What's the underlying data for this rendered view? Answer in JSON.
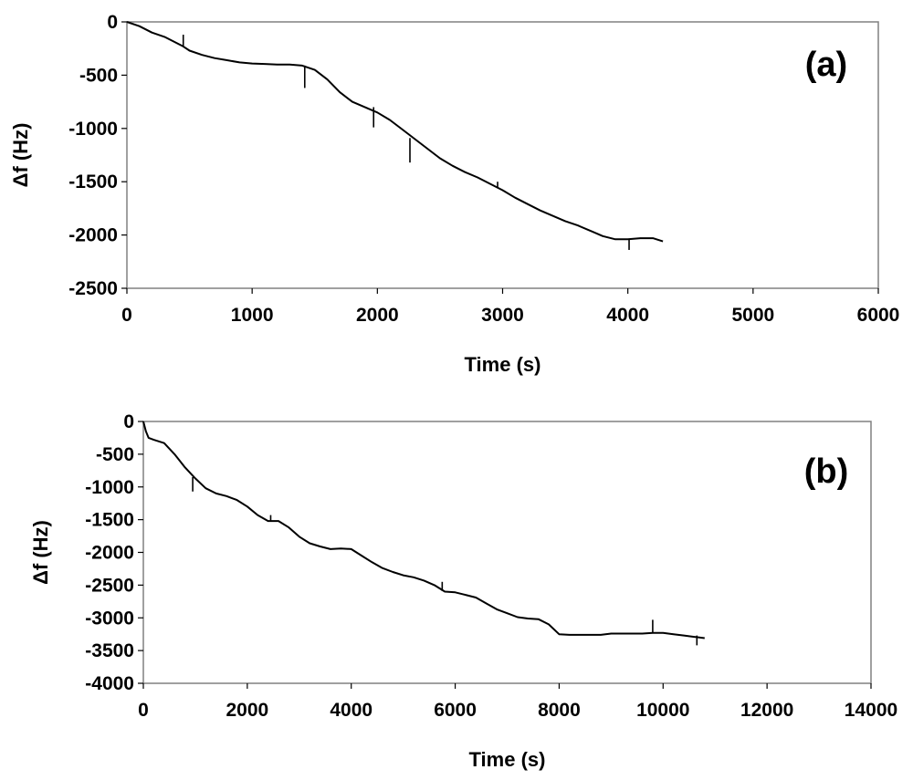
{
  "chart_data": [
    {
      "type": "line",
      "panel_label": "(a)",
      "xlabel": "Time (s)",
      "ylabel": "Δf (Hz)",
      "xlim": [
        0,
        6000
      ],
      "ylim": [
        -2500,
        0
      ],
      "xticks": [
        0,
        1000,
        2000,
        3000,
        4000,
        5000,
        6000
      ],
      "yticks": [
        0,
        -500,
        -1000,
        -1500,
        -2000,
        -2500
      ],
      "grid": false,
      "line_color": "#000000",
      "series": [
        {
          "x": [
            0,
            100,
            200,
            300,
            400,
            450,
            500,
            600,
            700,
            800,
            900,
            1000,
            1100,
            1200,
            1300,
            1400,
            1500,
            1600,
            1700,
            1800,
            1900,
            2000,
            2100,
            2200,
            2300,
            2400,
            2500,
            2600,
            2700,
            2800,
            2900,
            3000,
            3100,
            3200,
            3300,
            3400,
            3500,
            3600,
            3700,
            3800,
            3900,
            4000,
            4100,
            4200,
            4280
          ],
          "y": [
            0,
            -40,
            -100,
            -140,
            -200,
            -230,
            -270,
            -310,
            -340,
            -360,
            -380,
            -390,
            -395,
            -400,
            -400,
            -410,
            -450,
            -540,
            -660,
            -750,
            -800,
            -850,
            -920,
            -1010,
            -1100,
            -1190,
            -1280,
            -1350,
            -1410,
            -1460,
            -1520,
            -1580,
            -1650,
            -1710,
            -1770,
            -1820,
            -1870,
            -1910,
            -1960,
            -2010,
            -2040,
            -2040,
            -2030,
            -2030,
            -2060
          ]
        }
      ],
      "spikes": [
        {
          "x": 450,
          "y": [
            -230,
            -120
          ]
        },
        {
          "x": 1420,
          "y": [
            -410,
            -620
          ]
        },
        {
          "x": 1970,
          "y": [
            -800,
            -990
          ]
        },
        {
          "x": 2260,
          "y": [
            -1090,
            -1320
          ]
        },
        {
          "x": 2960,
          "y": [
            -1560,
            -1500
          ]
        },
        {
          "x": 4010,
          "y": [
            -2040,
            -2140
          ]
        }
      ]
    },
    {
      "type": "line",
      "panel_label": "(b)",
      "xlabel": "Time (s)",
      "ylabel": "Δf (Hz)",
      "xlim": [
        0,
        14000
      ],
      "ylim": [
        -4000,
        0
      ],
      "xticks": [
        0,
        2000,
        4000,
        6000,
        8000,
        10000,
        12000,
        14000
      ],
      "yticks": [
        0,
        -500,
        -1000,
        -1500,
        -2000,
        -2500,
        -3000,
        -3500,
        -4000
      ],
      "grid": false,
      "line_color": "#000000",
      "series": [
        {
          "x": [
            0,
            50,
            100,
            200,
            400,
            600,
            800,
            1000,
            1200,
            1400,
            1600,
            1800,
            2000,
            2200,
            2400,
            2600,
            2800,
            3000,
            3200,
            3400,
            3600,
            3800,
            4000,
            4200,
            4400,
            4600,
            4800,
            5000,
            5200,
            5400,
            5600,
            5800,
            6000,
            6200,
            6400,
            6600,
            6800,
            7000,
            7200,
            7400,
            7600,
            7800,
            8000,
            8200,
            8400,
            8600,
            8800,
            9000,
            9200,
            9400,
            9600,
            9800,
            10000,
            10200,
            10400,
            10600,
            10800
          ],
          "y": [
            0,
            -150,
            -250,
            -280,
            -330,
            -500,
            -700,
            -870,
            -1020,
            -1100,
            -1140,
            -1200,
            -1300,
            -1430,
            -1520,
            -1520,
            -1620,
            -1760,
            -1860,
            -1910,
            -1950,
            -1940,
            -1950,
            -2050,
            -2150,
            -2240,
            -2300,
            -2350,
            -2380,
            -2430,
            -2500,
            -2600,
            -2610,
            -2650,
            -2690,
            -2780,
            -2870,
            -2930,
            -2990,
            -3010,
            -3020,
            -3100,
            -3250,
            -3260,
            -3260,
            -3260,
            -3260,
            -3240,
            -3240,
            -3240,
            -3240,
            -3230,
            -3230,
            -3250,
            -3270,
            -3290,
            -3310
          ]
        }
      ],
      "spikes": [
        {
          "x": 950,
          "y": [
            -850,
            -1070
          ]
        },
        {
          "x": 2450,
          "y": [
            -1520,
            -1430
          ]
        },
        {
          "x": 5750,
          "y": [
            -2590,
            -2450
          ]
        },
        {
          "x": 9800,
          "y": [
            -3230,
            -3030
          ]
        },
        {
          "x": 10650,
          "y": [
            -3270,
            -3420
          ]
        }
      ]
    }
  ]
}
